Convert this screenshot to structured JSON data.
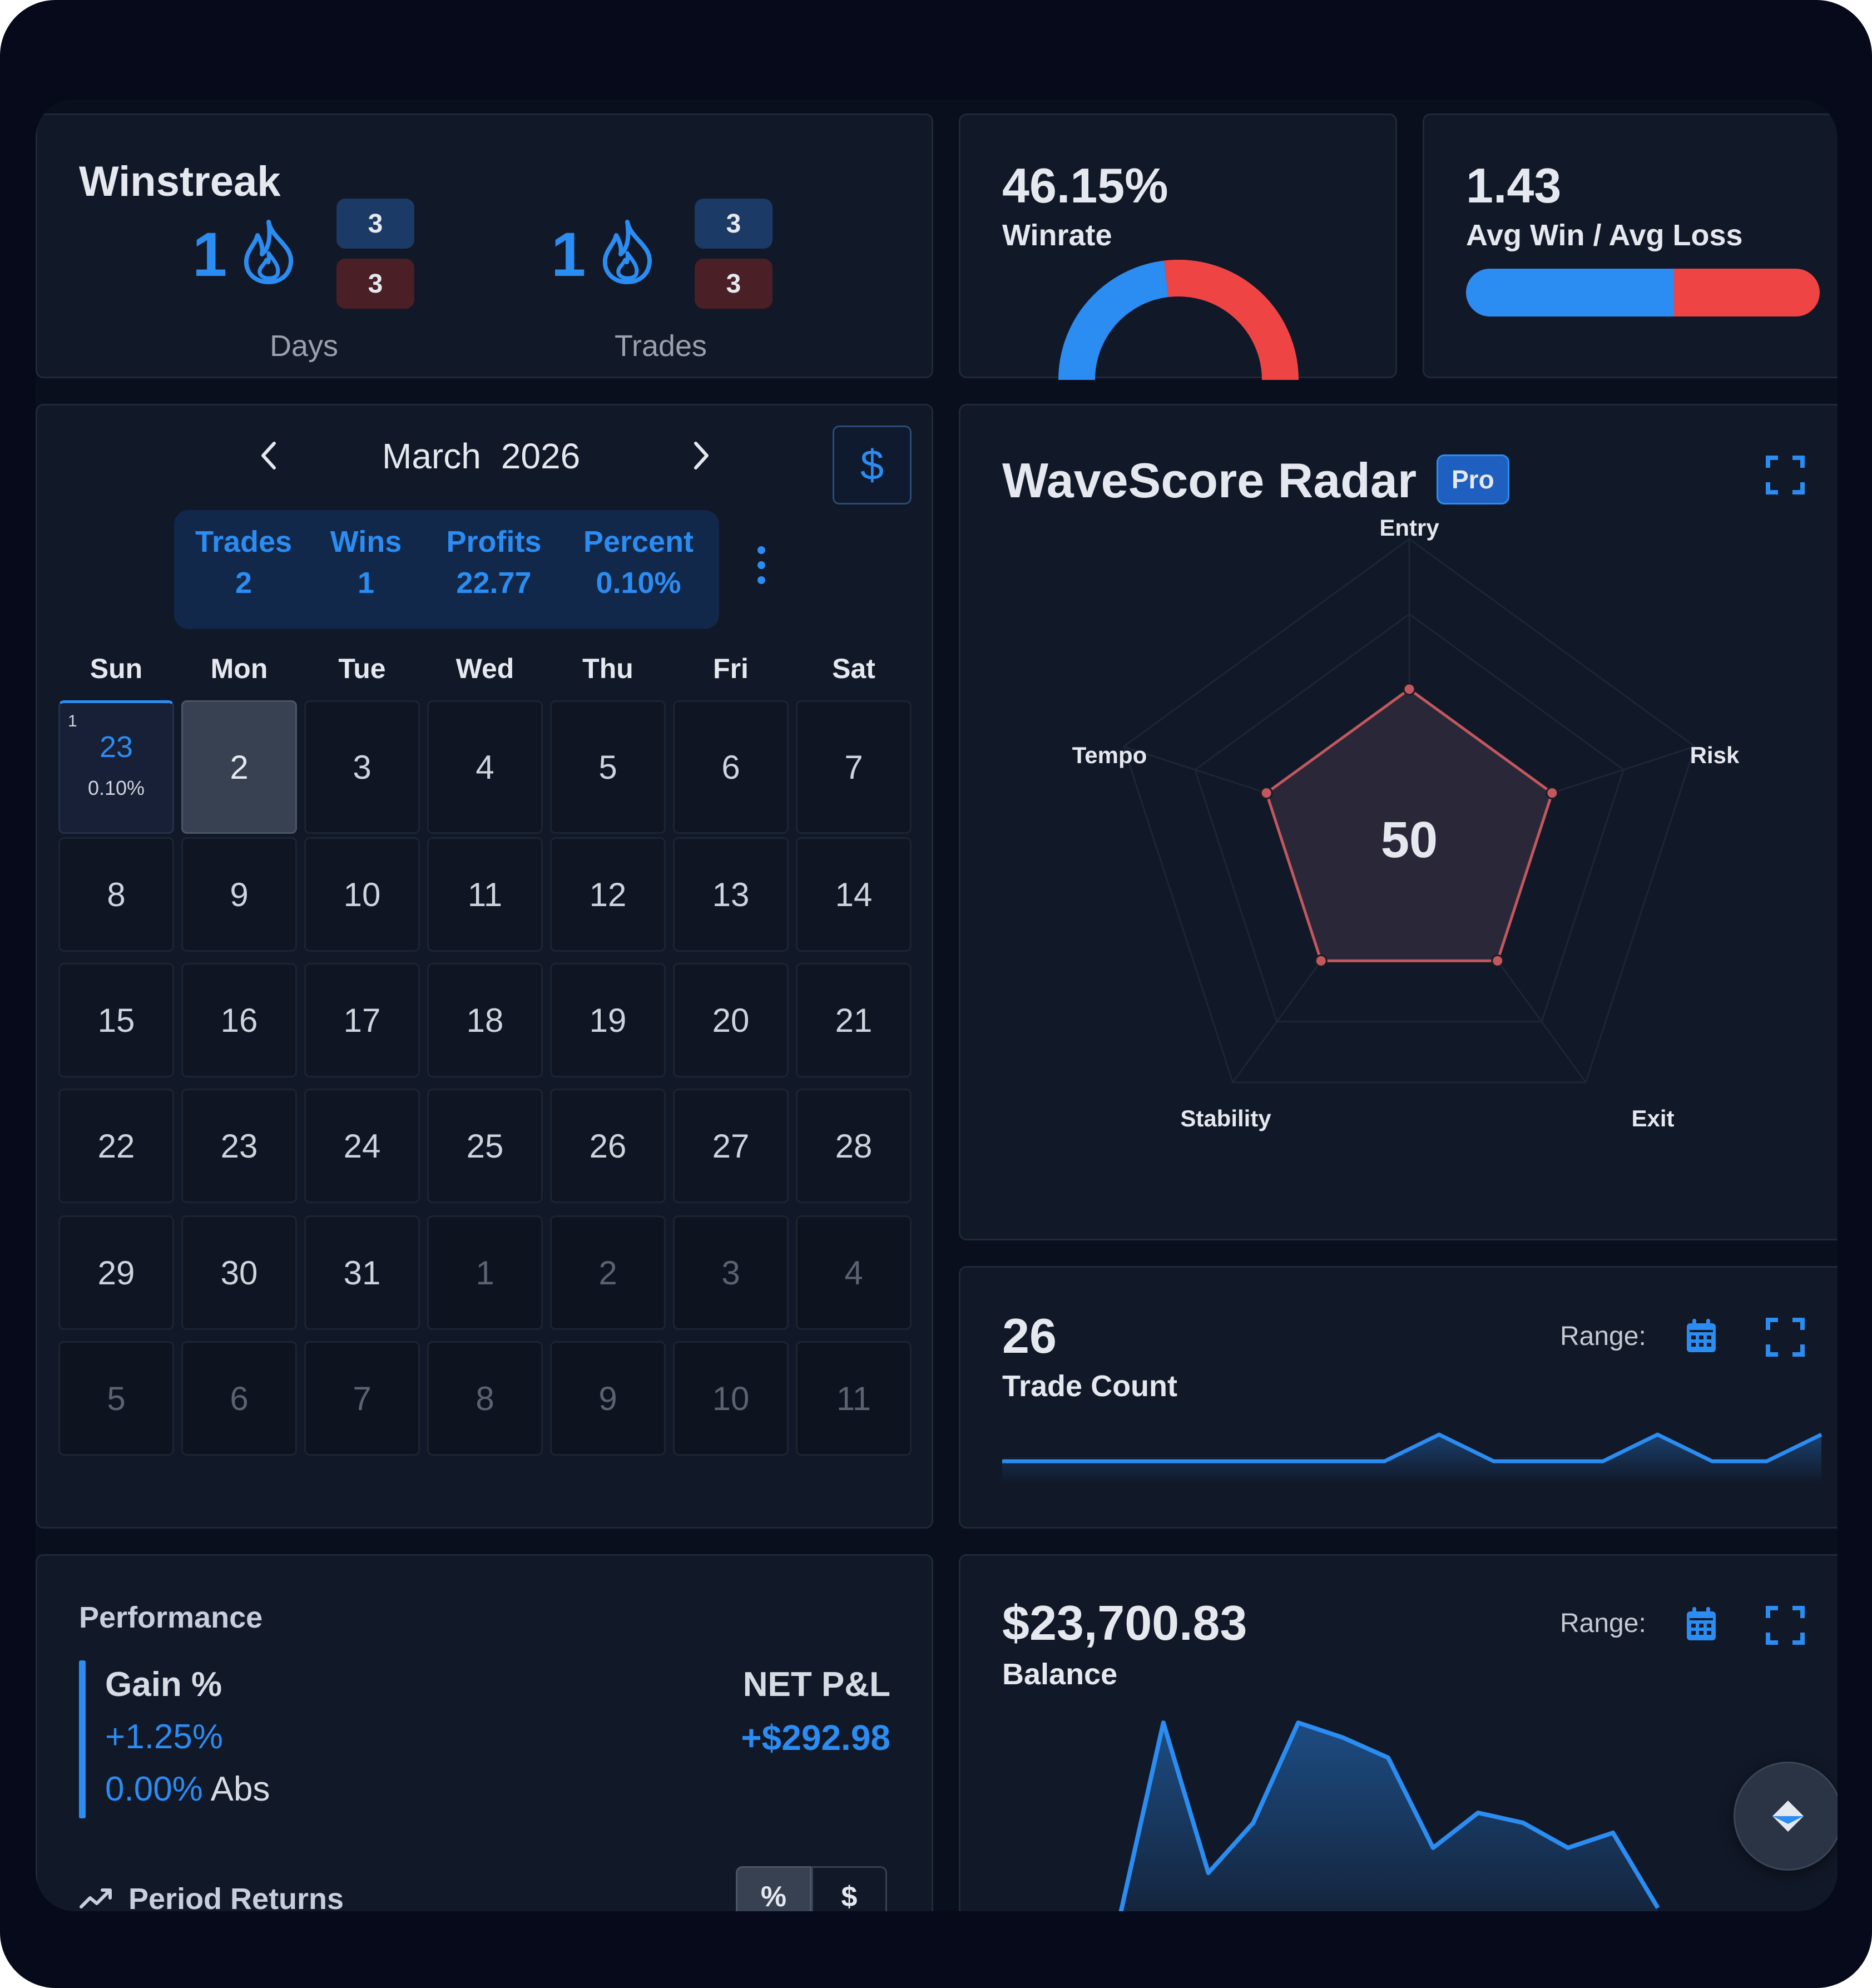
{
  "winstreak": {
    "title": "Winstreak",
    "days": {
      "count": "1",
      "wins": "3",
      "losses": "3",
      "label": "Days"
    },
    "trades": {
      "count": "1",
      "wins": "3",
      "losses": "3",
      "label": "Trades"
    }
  },
  "winrate": {
    "value": "46.15%",
    "label": "Winrate",
    "win_fraction": 0.4615
  },
  "ratio": {
    "value": "1.43",
    "label": "Avg Win / Avg Loss",
    "win_share": 0.588
  },
  "calendar": {
    "month": "March",
    "year": "2026",
    "currency_symbol": "$",
    "stats": [
      {
        "label": "Trades",
        "value": "2"
      },
      {
        "label": "Wins",
        "value": "1"
      },
      {
        "label": "Profits",
        "value": "22.77"
      },
      {
        "label": "Percent",
        "value": "0.10%"
      }
    ],
    "weekdays": [
      "Sun",
      "Mon",
      "Tue",
      "Wed",
      "Thu",
      "Fri",
      "Sat"
    ],
    "first_cell": {
      "day": "1",
      "value": "23",
      "percent": "0.10%"
    },
    "rows": [
      [
        "",
        "2",
        "3",
        "4",
        "5",
        "6",
        "7"
      ],
      [
        "8",
        "9",
        "10",
        "11",
        "12",
        "13",
        "14"
      ],
      [
        "15",
        "16",
        "17",
        "18",
        "19",
        "20",
        "21"
      ],
      [
        "22",
        "23",
        "24",
        "25",
        "26",
        "27",
        "28"
      ],
      [
        "29",
        "30",
        "31",
        "1",
        "2",
        "3",
        "4"
      ],
      [
        "5",
        "6",
        "7",
        "8",
        "9",
        "10",
        "11"
      ]
    ]
  },
  "radar": {
    "title": "WaveScore Radar",
    "badge": "Pro",
    "score": "50",
    "axes": [
      "Entry",
      "Risk",
      "Exit",
      "Stability",
      "Tempo"
    ],
    "values": [
      50,
      50,
      50,
      50,
      50
    ],
    "max": 100
  },
  "trade_count": {
    "value": "26",
    "label": "Trade Count",
    "range_label": "Range:",
    "series": [
      0,
      0,
      0,
      0,
      0,
      0,
      0,
      0,
      1,
      0,
      0,
      0,
      1,
      0,
      0,
      1
    ]
  },
  "performance": {
    "title": "Performance",
    "gain_label": "Gain %",
    "gain_value": "+1.25%",
    "abs_value": "0.00%",
    "abs_label": "Abs",
    "net_label": "NET P&L",
    "net_value": "+$292.98",
    "period_label": "Period Returns",
    "toggle": [
      "%",
      "$"
    ]
  },
  "balance": {
    "value": "$23,700.83",
    "label": "Balance",
    "range_label": "Range:",
    "series": [
      0,
      4,
      1,
      2,
      4,
      3.7,
      3.3,
      1.5,
      2.2,
      2,
      1.5,
      1.8,
      0.3
    ]
  },
  "colors": {
    "accent": "#2b8cf2",
    "loss": "#ef4444",
    "radar": "#c2585e"
  }
}
